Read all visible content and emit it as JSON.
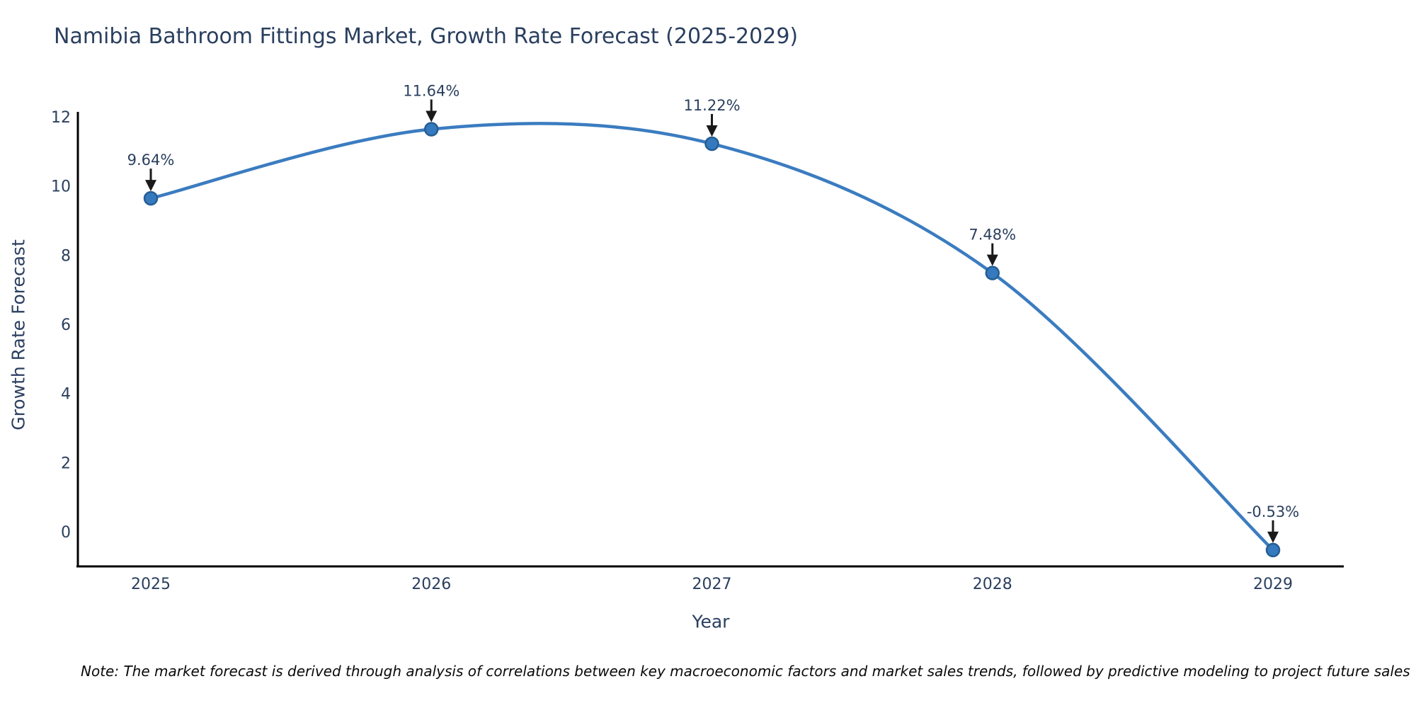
{
  "chart_data": {
    "type": "line",
    "title": "Namibia Bathroom Fittings Market, Growth Rate Forecast (2025-2029)",
    "xlabel": "Year",
    "ylabel": "Growth Rate Forecast",
    "categories": [
      "2025",
      "2026",
      "2027",
      "2028",
      "2029"
    ],
    "series": [
      {
        "name": "Growth Rate Forecast",
        "values": [
          9.64,
          11.64,
          11.22,
          7.48,
          -0.53
        ]
      }
    ],
    "point_labels": [
      "9.64%",
      "11.64%",
      "11.22%",
      "7.48%",
      "-0.53%"
    ],
    "yticks": [
      0,
      2,
      4,
      6,
      8,
      10,
      12
    ],
    "ylim": [
      -1.003,
      12.1
    ],
    "grid": false,
    "legend": "none",
    "line_shape": "spline",
    "colors": {
      "line": "#3b7cc0",
      "marker_fill": "#3579be",
      "marker_edge": "#255e93",
      "axis_text": "#2a3f5f",
      "annotation_text": "#2a3f5f",
      "arrow": "#1a1a1a",
      "spine": "#000000",
      "background": "#ffffff"
    }
  },
  "footnote": "Note: The market forecast is derived through analysis of correlations between key macroeconomic factors and market sales trends, followed by predictive modeling to project future sales"
}
